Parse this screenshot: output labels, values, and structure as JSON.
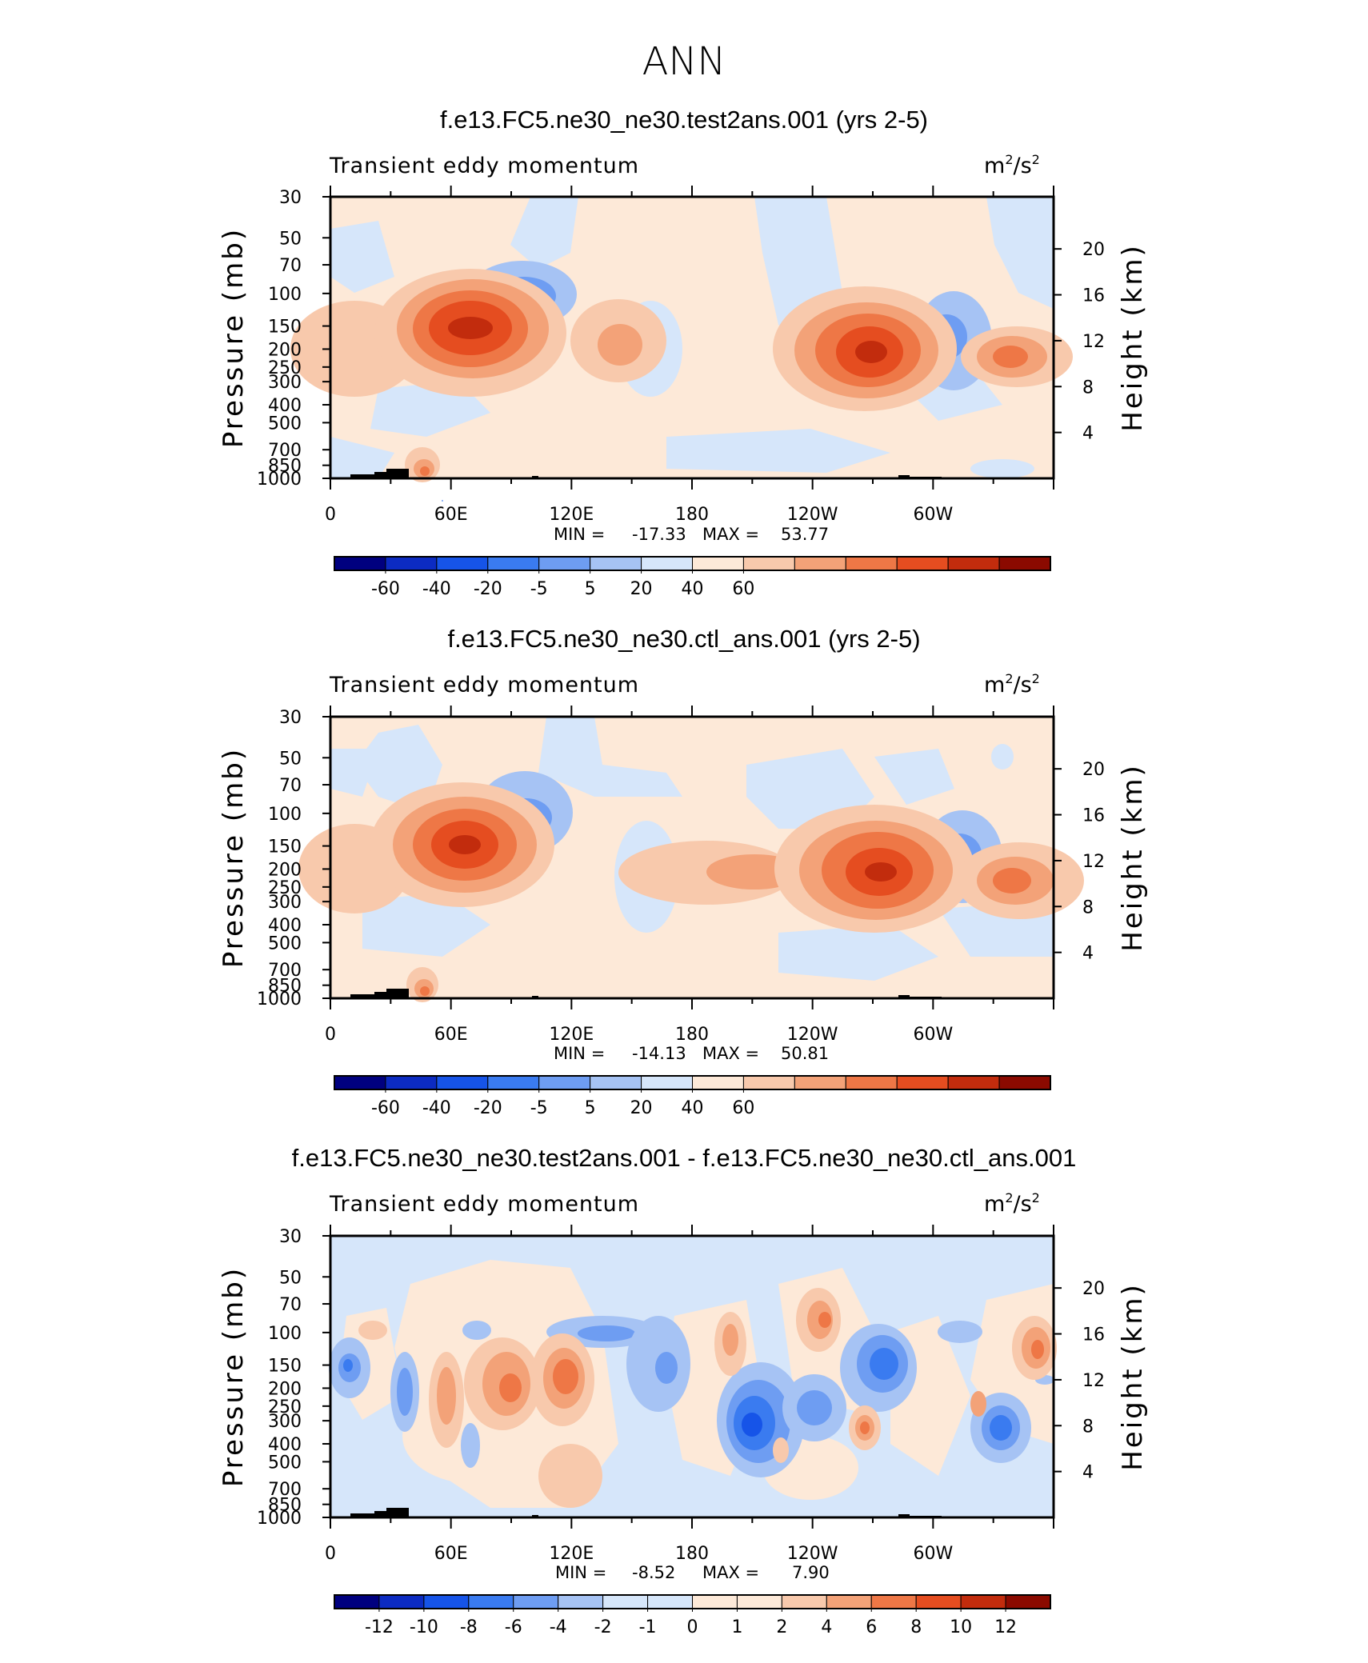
{
  "page": {
    "main_title": "ANN"
  },
  "panels": [
    {
      "title": "f.e13.FC5.ne30_ne30.test2ans.001 (yrs 2-5)",
      "variable": "Transient eddy momentum",
      "units": {
        "base": "m",
        "exp": "2",
        "sep": "/s",
        "exp2": "2"
      },
      "stats": {
        "min_label": "MIN =",
        "min": "-17.33",
        "max_label": "MAX =",
        "max": "53.77"
      },
      "colorbar_labels": [
        "-60",
        "-40",
        "-20",
        "-5",
        "5",
        "20",
        "40",
        "60"
      ]
    },
    {
      "title": "f.e13.FC5.ne30_ne30.ctl_ans.001 (yrs 2-5)",
      "variable": "Transient eddy momentum",
      "units": {
        "base": "m",
        "exp": "2",
        "sep": "/s",
        "exp2": "2"
      },
      "stats": {
        "min_label": "MIN =",
        "min": "-14.13",
        "max_label": "MAX =",
        "max": "50.81"
      },
      "colorbar_labels": [
        "-60",
        "-40",
        "-20",
        "-5",
        "5",
        "20",
        "40",
        "60"
      ]
    },
    {
      "title": "f.e13.FC5.ne30_ne30.test2ans.001 - f.e13.FC5.ne30_ne30.ctl_ans.001",
      "variable": "Transient eddy momentum",
      "units": {
        "base": "m",
        "exp": "2",
        "sep": "/s",
        "exp2": "2"
      },
      "stats": {
        "min_label": "MIN =",
        "min": "-8.52",
        "max_label": "MAX =",
        "max": "7.90"
      },
      "colorbar_labels": [
        "-12",
        "-10",
        "-8",
        "-6",
        "-4",
        "-2",
        "-1",
        "0",
        "1",
        "2",
        "4",
        "6",
        "8",
        "10",
        "12"
      ]
    }
  ],
  "axes": {
    "ylabel_left": "Pressure (mb)",
    "ylabel_right": "Height (km)",
    "pressure_ticks": [
      "30",
      "50",
      "70",
      "100",
      "150",
      "200",
      "250",
      "300",
      "400",
      "500",
      "700",
      "850",
      "1000"
    ],
    "height_ticks": [
      "20",
      "16",
      "12",
      "8",
      "4"
    ],
    "lon_ticks": [
      "0",
      "60E",
      "120E",
      "180",
      "120W",
      "60W"
    ]
  },
  "colors": {
    "full_scale": [
      "#00007f",
      "#0c2bc2",
      "#1654e8",
      "#3a7bf0",
      "#6e9df2",
      "#a6c3f4",
      "#d6e6fa",
      "#fde9d8",
      "#f8c9ac",
      "#f3a278",
      "#ee7746",
      "#e54d20",
      "#c22c0d",
      "#8b0a00"
    ],
    "diff_scale": [
      "#00007f",
      "#0c2bc2",
      "#1654e8",
      "#3a7bf0",
      "#6e9df2",
      "#a6c3f4",
      "#d6e6fa",
      "#d6e6fa",
      "#fde9d8",
      "#fde9d8",
      "#f8c9ac",
      "#f3a278",
      "#ee7746",
      "#e54d20",
      "#c22c0d",
      "#8b0a00"
    ]
  },
  "chart_data": [
    {
      "type": "contour",
      "title": "f.e13.FC5.ne30_ne30.test2ans.001 (yrs 2-5)",
      "x_axis": "longitude",
      "y_axis": "pressure (mb)",
      "levels": [
        -60,
        -40,
        -20,
        -5,
        5,
        20,
        40,
        60
      ],
      "min": -17.33,
      "max": 53.77,
      "features": [
        {
          "lon": 70,
          "p": 150,
          "value": 53
        },
        {
          "lon": 205,
          "p": 175,
          "value": 45
        },
        {
          "lon": 265,
          "p": 200,
          "value": 28
        },
        {
          "lon": 110,
          "p": 100,
          "value": -17
        },
        {
          "lon": 230,
          "p": 170,
          "value": -15
        },
        {
          "lon": 0,
          "p": 175,
          "value": 15
        },
        {
          "lon": 160,
          "p": 180,
          "value": 12
        },
        {
          "lon": 40,
          "p": 900,
          "value": 15
        }
      ]
    },
    {
      "type": "contour",
      "title": "f.e13.FC5.ne30_ne30.ctl_ans.001 (yrs 2-5)",
      "x_axis": "longitude",
      "y_axis": "pressure (mb)",
      "levels": [
        -60,
        -40,
        -20,
        -5,
        5,
        20,
        40,
        60
      ],
      "min": -14.13,
      "max": 50.81,
      "features": [
        {
          "lon": 65,
          "p": 150,
          "value": 50
        },
        {
          "lon": 205,
          "p": 190,
          "value": 45
        },
        {
          "lon": 265,
          "p": 210,
          "value": 25
        },
        {
          "lon": 105,
          "p": 100,
          "value": -14
        },
        {
          "lon": 230,
          "p": 170,
          "value": -13
        },
        {
          "lon": 0,
          "p": 175,
          "value": 15
        },
        {
          "lon": 170,
          "p": 190,
          "value": 10
        },
        {
          "lon": 40,
          "p": 900,
          "value": 15
        }
      ]
    },
    {
      "type": "contour",
      "title": "f.e13.FC5.ne30_ne30.test2ans.001 - f.e13.FC5.ne30_ne30.ctl_ans.001",
      "x_axis": "longitude",
      "y_axis": "pressure (mb)",
      "levels": [
        -12,
        -10,
        -8,
        -6,
        -4,
        -2,
        -1,
        0,
        1,
        2,
        4,
        6,
        8,
        10,
        12
      ],
      "min": -8.52,
      "max": 7.9,
      "features": [
        {
          "lon": 105,
          "p": 175,
          "value": 7
        },
        {
          "lon": 85,
          "p": 190,
          "value": 5
        },
        {
          "lon": 60,
          "p": 200,
          "value": 5
        },
        {
          "lon": 190,
          "p": 250,
          "value": -8
        },
        {
          "lon": 250,
          "p": 280,
          "value": -7
        },
        {
          "lon": 225,
          "p": 160,
          "value": -6
        },
        {
          "lon": 8,
          "p": 150,
          "value": -4
        },
        {
          "lon": 260,
          "p": 140,
          "value": 6
        },
        {
          "lon": 205,
          "p": 270,
          "value": 5
        }
      ]
    }
  ]
}
